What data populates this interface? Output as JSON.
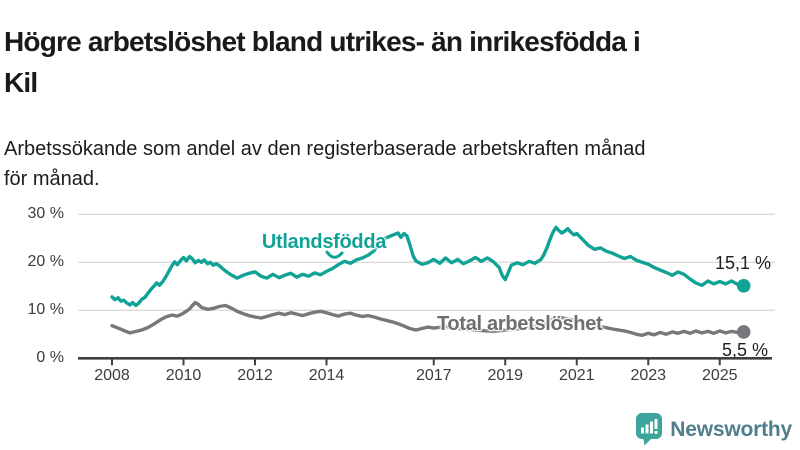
{
  "header": {
    "title_lines": [
      "Högre arbetslöshet bland utrikes- än inrikesfödda i",
      "Kil"
    ],
    "subtitle_lines": [
      "Arbetssökande som andel av den registerbaserade arbetskraften månad",
      "för månad."
    ]
  },
  "footer": {
    "brand": "Newsworthy",
    "logo_icon": "bar-chart-speech-bubble-icon"
  },
  "colors": {
    "foreign_line": "#11a296",
    "total_line": "#78787c",
    "total_label_text": "#6e6e72",
    "grid": "#dbdbdb",
    "axis": "#404040",
    "axis_text": "#3d3d3d",
    "title_text": "#1a1a1a",
    "brand_icon": "#3ba59c",
    "brand_text": "#4f7e8c"
  },
  "chart_data": {
    "type": "line",
    "title": "Högre arbetslöshet bland utrikes- än inrikesfödda i Kil",
    "subtitle": "Arbetssökande som andel av den registerbaserade arbetskraften månad för månad.",
    "xlabel": "",
    "ylabel": "",
    "x_axis": {
      "ticks": [
        2008,
        2010,
        2012,
        2014,
        2017,
        2019,
        2021,
        2023,
        2025
      ],
      "range": [
        2007.0,
        2026.4
      ]
    },
    "y_axis": {
      "ticks": [
        0,
        10,
        20,
        30
      ],
      "tick_suffix": " %",
      "range": [
        0,
        32
      ],
      "grid": true
    },
    "legend_position": "inline-labels",
    "series": [
      {
        "name": "Utlandsfödda",
        "color": "#11a296",
        "end_label": "15,1 %",
        "end_value": 15.1,
        "points": [
          [
            2008.0,
            12.8
          ],
          [
            2008.08,
            12.2
          ],
          [
            2008.17,
            12.6
          ],
          [
            2008.25,
            11.9
          ],
          [
            2008.33,
            12.1
          ],
          [
            2008.42,
            11.5
          ],
          [
            2008.5,
            11.1
          ],
          [
            2008.58,
            11.6
          ],
          [
            2008.67,
            11.0
          ],
          [
            2008.75,
            11.5
          ],
          [
            2008.83,
            12.3
          ],
          [
            2008.92,
            12.7
          ],
          [
            2009.0,
            13.5
          ],
          [
            2009.08,
            14.3
          ],
          [
            2009.17,
            15.0
          ],
          [
            2009.25,
            15.7
          ],
          [
            2009.33,
            15.2
          ],
          [
            2009.42,
            16.0
          ],
          [
            2009.5,
            16.9
          ],
          [
            2009.58,
            18.0
          ],
          [
            2009.67,
            19.2
          ],
          [
            2009.75,
            20.1
          ],
          [
            2009.83,
            19.5
          ],
          [
            2009.92,
            20.4
          ],
          [
            2010.0,
            21.0
          ],
          [
            2010.08,
            20.3
          ],
          [
            2010.17,
            21.2
          ],
          [
            2010.25,
            20.7
          ],
          [
            2010.33,
            19.9
          ],
          [
            2010.42,
            20.4
          ],
          [
            2010.5,
            20.0
          ],
          [
            2010.58,
            20.5
          ],
          [
            2010.67,
            19.7
          ],
          [
            2010.75,
            20.0
          ],
          [
            2010.83,
            19.4
          ],
          [
            2010.92,
            19.7
          ],
          [
            2011.0,
            19.3
          ],
          [
            2011.17,
            18.2
          ],
          [
            2011.33,
            17.4
          ],
          [
            2011.5,
            16.7
          ],
          [
            2011.67,
            17.3
          ],
          [
            2011.83,
            17.7
          ],
          [
            2012.0,
            18.0
          ],
          [
            2012.17,
            17.1
          ],
          [
            2012.33,
            16.7
          ],
          [
            2012.5,
            17.5
          ],
          [
            2012.67,
            16.8
          ],
          [
            2012.83,
            17.3
          ],
          [
            2013.0,
            17.7
          ],
          [
            2013.17,
            16.9
          ],
          [
            2013.33,
            17.5
          ],
          [
            2013.5,
            17.1
          ],
          [
            2013.67,
            17.8
          ],
          [
            2013.83,
            17.4
          ],
          [
            2014.0,
            18.1
          ],
          [
            2014.17,
            18.7
          ],
          [
            2014.33,
            19.5
          ],
          [
            2014.5,
            20.2
          ],
          [
            2014.67,
            19.8
          ],
          [
            2014.83,
            20.5
          ],
          [
            2015.0,
            20.9
          ],
          [
            2015.17,
            21.5
          ],
          [
            2015.33,
            22.4
          ],
          [
            2015.5,
            24.4
          ],
          [
            2015.67,
            25.1
          ],
          [
            2015.83,
            25.6
          ],
          [
            2016.0,
            26.1
          ],
          [
            2016.08,
            25.2
          ],
          [
            2016.17,
            26.0
          ],
          [
            2016.25,
            25.5
          ],
          [
            2016.33,
            23.7
          ],
          [
            2016.42,
            21.4
          ],
          [
            2016.5,
            20.3
          ],
          [
            2016.67,
            19.6
          ],
          [
            2016.83,
            19.9
          ],
          [
            2017.0,
            20.6
          ],
          [
            2017.17,
            19.8
          ],
          [
            2017.33,
            20.9
          ],
          [
            2017.5,
            19.9
          ],
          [
            2017.67,
            20.6
          ],
          [
            2017.83,
            19.7
          ],
          [
            2018.0,
            20.3
          ],
          [
            2018.17,
            21.0
          ],
          [
            2018.33,
            20.2
          ],
          [
            2018.5,
            20.9
          ],
          [
            2018.67,
            20.1
          ],
          [
            2018.83,
            18.9
          ],
          [
            2018.92,
            17.2
          ],
          [
            2019.0,
            16.4
          ],
          [
            2019.08,
            17.8
          ],
          [
            2019.17,
            19.4
          ],
          [
            2019.33,
            19.9
          ],
          [
            2019.5,
            19.5
          ],
          [
            2019.67,
            20.2
          ],
          [
            2019.83,
            19.8
          ],
          [
            2020.0,
            20.6
          ],
          [
            2020.08,
            21.6
          ],
          [
            2020.17,
            23.1
          ],
          [
            2020.25,
            24.7
          ],
          [
            2020.33,
            26.2
          ],
          [
            2020.42,
            27.3
          ],
          [
            2020.5,
            26.6
          ],
          [
            2020.58,
            26.1
          ],
          [
            2020.67,
            26.5
          ],
          [
            2020.75,
            27.0
          ],
          [
            2020.83,
            26.3
          ],
          [
            2020.92,
            25.7
          ],
          [
            2021.0,
            26.0
          ],
          [
            2021.17,
            24.7
          ],
          [
            2021.33,
            23.5
          ],
          [
            2021.5,
            22.7
          ],
          [
            2021.67,
            23.0
          ],
          [
            2021.83,
            22.3
          ],
          [
            2022.0,
            21.9
          ],
          [
            2022.17,
            21.3
          ],
          [
            2022.33,
            20.8
          ],
          [
            2022.5,
            21.2
          ],
          [
            2022.67,
            20.4
          ],
          [
            2022.83,
            20.0
          ],
          [
            2023.0,
            19.6
          ],
          [
            2023.17,
            18.9
          ],
          [
            2023.33,
            18.4
          ],
          [
            2023.5,
            17.9
          ],
          [
            2023.67,
            17.3
          ],
          [
            2023.83,
            18.0
          ],
          [
            2024.0,
            17.5
          ],
          [
            2024.17,
            16.5
          ],
          [
            2024.33,
            15.7
          ],
          [
            2024.5,
            15.2
          ],
          [
            2024.67,
            16.1
          ],
          [
            2024.83,
            15.5
          ],
          [
            2025.0,
            16.0
          ],
          [
            2025.17,
            15.5
          ],
          [
            2025.33,
            16.1
          ],
          [
            2025.5,
            15.4
          ],
          [
            2025.67,
            15.1
          ]
        ]
      },
      {
        "name": "Total arbetslöshet",
        "color": "#78787c",
        "end_label": "5,5 %",
        "end_value": 5.5,
        "points": [
          [
            2008.0,
            6.8
          ],
          [
            2008.17,
            6.3
          ],
          [
            2008.33,
            5.8
          ],
          [
            2008.5,
            5.3
          ],
          [
            2008.67,
            5.6
          ],
          [
            2008.83,
            5.9
          ],
          [
            2009.0,
            6.4
          ],
          [
            2009.17,
            7.1
          ],
          [
            2009.33,
            7.9
          ],
          [
            2009.5,
            8.6
          ],
          [
            2009.67,
            9.0
          ],
          [
            2009.83,
            8.8
          ],
          [
            2010.0,
            9.4
          ],
          [
            2010.17,
            10.3
          ],
          [
            2010.25,
            11.0
          ],
          [
            2010.33,
            11.6
          ],
          [
            2010.42,
            11.2
          ],
          [
            2010.5,
            10.6
          ],
          [
            2010.67,
            10.2
          ],
          [
            2010.83,
            10.4
          ],
          [
            2011.0,
            10.8
          ],
          [
            2011.17,
            11.0
          ],
          [
            2011.33,
            10.5
          ],
          [
            2011.5,
            9.8
          ],
          [
            2011.67,
            9.3
          ],
          [
            2011.83,
            8.9
          ],
          [
            2012.0,
            8.6
          ],
          [
            2012.17,
            8.4
          ],
          [
            2012.33,
            8.7
          ],
          [
            2012.5,
            9.1
          ],
          [
            2012.67,
            9.4
          ],
          [
            2012.83,
            9.1
          ],
          [
            2013.0,
            9.5
          ],
          [
            2013.17,
            9.2
          ],
          [
            2013.33,
            8.9
          ],
          [
            2013.5,
            9.3
          ],
          [
            2013.67,
            9.6
          ],
          [
            2013.83,
            9.8
          ],
          [
            2014.0,
            9.5
          ],
          [
            2014.17,
            9.1
          ],
          [
            2014.33,
            8.8
          ],
          [
            2014.5,
            9.2
          ],
          [
            2014.67,
            9.4
          ],
          [
            2014.83,
            9.0
          ],
          [
            2015.0,
            8.7
          ],
          [
            2015.17,
            8.9
          ],
          [
            2015.33,
            8.6
          ],
          [
            2015.5,
            8.2
          ],
          [
            2015.67,
            7.9
          ],
          [
            2015.83,
            7.6
          ],
          [
            2016.0,
            7.2
          ],
          [
            2016.17,
            6.7
          ],
          [
            2016.33,
            6.2
          ],
          [
            2016.5,
            5.9
          ],
          [
            2016.67,
            6.2
          ],
          [
            2016.83,
            6.5
          ],
          [
            2017.0,
            6.3
          ],
          [
            2017.33,
            6.6
          ],
          [
            2017.67,
            6.2
          ],
          [
            2018.0,
            6.0
          ],
          [
            2018.33,
            5.8
          ],
          [
            2018.67,
            5.6
          ],
          [
            2019.0,
            5.9
          ],
          [
            2019.33,
            6.1
          ],
          [
            2019.67,
            6.4
          ],
          [
            2020.0,
            6.8
          ],
          [
            2020.33,
            8.2
          ],
          [
            2020.5,
            8.6
          ],
          [
            2020.67,
            8.3
          ],
          [
            2021.0,
            7.8
          ],
          [
            2021.33,
            7.2
          ],
          [
            2021.67,
            6.6
          ],
          [
            2022.0,
            6.1
          ],
          [
            2022.33,
            5.7
          ],
          [
            2022.5,
            5.4
          ],
          [
            2022.67,
            5.0
          ],
          [
            2022.83,
            4.8
          ],
          [
            2023.0,
            5.2
          ],
          [
            2023.17,
            4.9
          ],
          [
            2023.33,
            5.4
          ],
          [
            2023.5,
            5.0
          ],
          [
            2023.67,
            5.5
          ],
          [
            2023.83,
            5.2
          ],
          [
            2024.0,
            5.6
          ],
          [
            2024.17,
            5.2
          ],
          [
            2024.33,
            5.7
          ],
          [
            2024.5,
            5.3
          ],
          [
            2024.67,
            5.6
          ],
          [
            2024.83,
            5.2
          ],
          [
            2025.0,
            5.7
          ],
          [
            2025.17,
            5.3
          ],
          [
            2025.33,
            5.6
          ],
          [
            2025.5,
            5.4
          ],
          [
            2025.67,
            5.5
          ]
        ]
      }
    ]
  }
}
